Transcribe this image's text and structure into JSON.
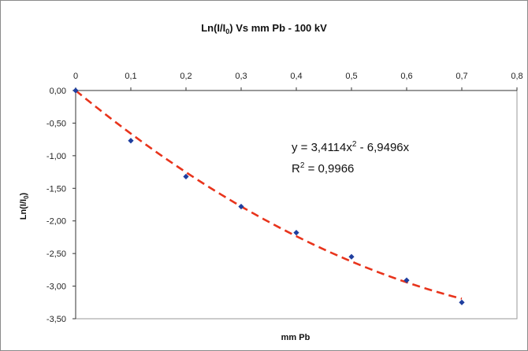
{
  "chart_data": {
    "type": "scatter",
    "title": {
      "main": "Ln(I/I",
      "sub": "0",
      "rest": ") Vs mm Pb - 100 kV"
    },
    "xlabel": "mm Pb",
    "ylabel": {
      "main": "Ln(I/I",
      "sub": "0",
      "rest": ")"
    },
    "xlim": [
      0,
      0.8
    ],
    "ylim": [
      -3.5,
      0
    ],
    "x_ticks": [
      "0",
      "0,1",
      "0,2",
      "0,3",
      "0,4",
      "0,5",
      "0,6",
      "0,7",
      "0,8"
    ],
    "y_ticks": [
      "0,00",
      "-0,50",
      "-1,00",
      "-1,50",
      "-2,00",
      "-2,50",
      "-3,00",
      "-3,50"
    ],
    "x_axis_position": "top",
    "grid": false,
    "points": [
      {
        "x": 0.0,
        "y": 0.0
      },
      {
        "x": 0.1,
        "y": -0.77
      },
      {
        "x": 0.2,
        "y": -1.32
      },
      {
        "x": 0.3,
        "y": -1.78
      },
      {
        "x": 0.4,
        "y": -2.18
      },
      {
        "x": 0.5,
        "y": -2.55
      },
      {
        "x": 0.6,
        "y": -2.91
      },
      {
        "x": 0.7,
        "y": -3.25
      }
    ],
    "trendline": {
      "type": "polynomial",
      "a": 3.4114,
      "b": -6.9496,
      "c": 0,
      "color": "#e8341c"
    },
    "marker_color": "#1f3f9f",
    "equation": {
      "prefix": "y = 3,4114x",
      "sup": "2",
      "suffix": " - 6,9496x"
    },
    "r_squared": {
      "prefix": "R",
      "sup": "2",
      "suffix": " = 0,9966"
    }
  }
}
